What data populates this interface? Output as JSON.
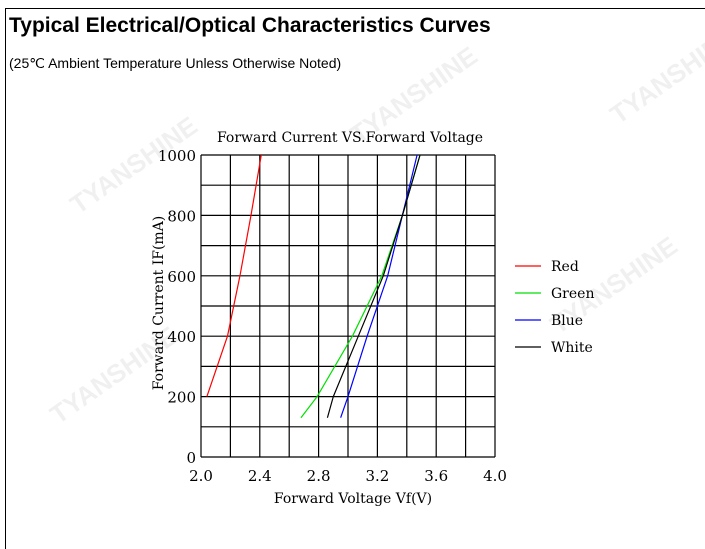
{
  "header": {
    "title": "Typical Electrical/Optical Characteristics Curves",
    "subtitle": "(25℃ Ambient Temperature Unless Otherwise Noted)"
  },
  "chart_data": {
    "type": "line",
    "title": "Forward Current VS.Forward Voltage",
    "xlabel": "Forward Voltage Vf(V)",
    "ylabel": "Forward Current IF(mA)",
    "xlim": [
      2.0,
      4.0
    ],
    "ylim": [
      0,
      1000
    ],
    "xticks": [
      "2.0",
      "2.4",
      "2.8",
      "3.2",
      "3.6",
      "4.0"
    ],
    "yticks": [
      "0",
      "200",
      "400",
      "600",
      "800",
      "1000"
    ],
    "grid": true,
    "legend_position": "right",
    "series": [
      {
        "name": "Red",
        "color": "#ff0000",
        "x": [
          2.04,
          2.18,
          2.265,
          2.34,
          2.41
        ],
        "y": [
          200,
          400,
          600,
          800,
          1000
        ]
      },
      {
        "name": "Green",
        "color": "#00e000",
        "x": [
          2.68,
          2.79,
          3.03,
          3.23,
          3.37,
          3.49
        ],
        "y": [
          130,
          200,
          400,
          600,
          800,
          1000
        ]
      },
      {
        "name": "Blue",
        "color": "#0000ff",
        "x": [
          2.95,
          3.0,
          3.13,
          3.27,
          3.37,
          3.47
        ],
        "y": [
          130,
          200,
          400,
          600,
          800,
          1000
        ]
      },
      {
        "name": "White",
        "color": "#000000",
        "x": [
          2.86,
          2.9,
          3.07,
          3.24,
          3.37,
          3.49
        ],
        "y": [
          130,
          200,
          400,
          600,
          800,
          1000
        ]
      }
    ]
  }
}
